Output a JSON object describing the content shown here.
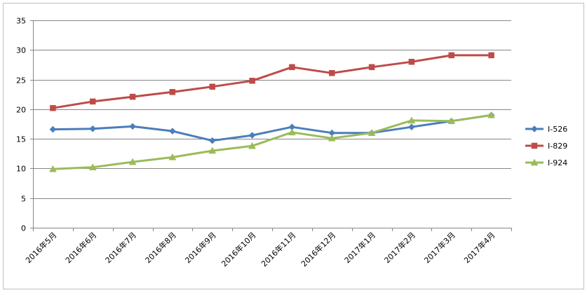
{
  "chart_data": {
    "type": "line",
    "title": "",
    "xlabel": "",
    "ylabel": "",
    "categories": [
      "2016年5月",
      "2016年6月",
      "2016年7月",
      "2016年8月",
      "2016年9月",
      "2016年10月",
      "2016年11月",
      "2016年12月",
      "2017年1月",
      "2017年2月",
      "2017年3月",
      "2017年4月"
    ],
    "ylim": [
      0,
      35
    ],
    "yticks": [
      0,
      5,
      10,
      15,
      20,
      25,
      30,
      35
    ],
    "grid": "horizontal",
    "legend_position": "right",
    "series": [
      {
        "name": "I-526",
        "color": "#4a7ebb",
        "marker": "diamond",
        "values": [
          16.6,
          16.7,
          17.1,
          16.3,
          14.7,
          15.6,
          17.0,
          16.0,
          16.0,
          17.0,
          18.0,
          19.0
        ]
      },
      {
        "name": "I-829",
        "color": "#be4b48",
        "marker": "square",
        "values": [
          20.2,
          21.3,
          22.1,
          22.9,
          23.8,
          24.8,
          27.1,
          26.1,
          27.1,
          28.0,
          29.1,
          29.1
        ]
      },
      {
        "name": "I-924",
        "color": "#9bbb59",
        "marker": "triangle",
        "values": [
          9.9,
          10.2,
          11.1,
          11.9,
          13.0,
          13.8,
          16.1,
          15.1,
          16.0,
          18.1,
          18.0,
          19.0
        ]
      }
    ]
  }
}
